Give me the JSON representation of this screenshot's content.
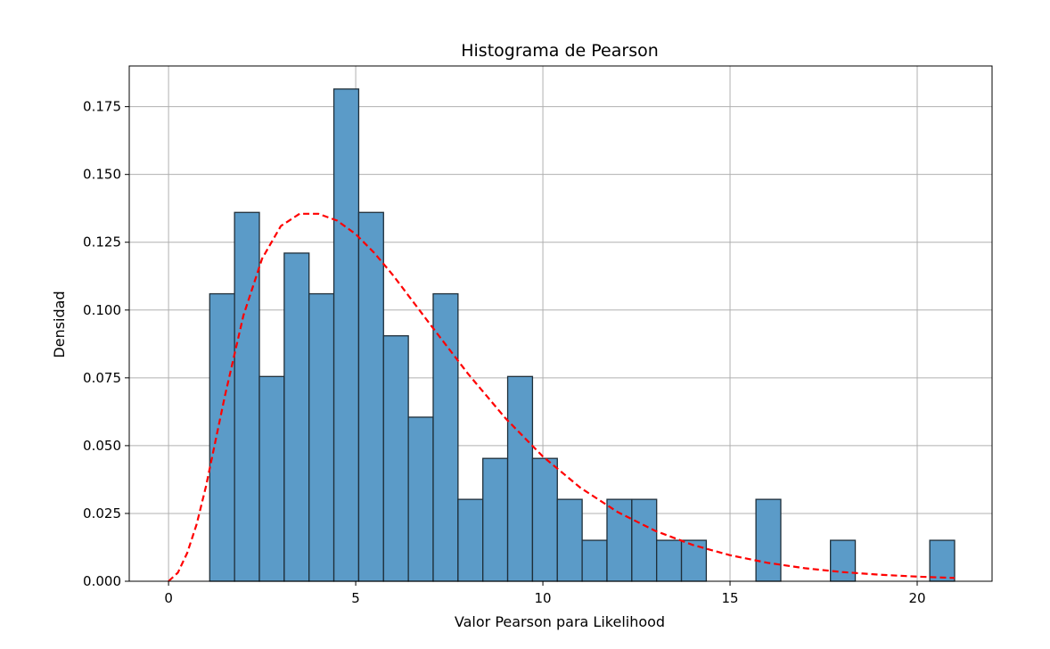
{
  "chart_data": {
    "type": "bar",
    "title": "Histograma de Pearson",
    "xlabel": "Valor Pearson para Likelihood",
    "ylabel": "Densidad",
    "xlim": [
      -1.05,
      22.0
    ],
    "ylim": [
      0,
      0.19
    ],
    "xticks": [
      0,
      5,
      10,
      15,
      20
    ],
    "xtick_labels": [
      "0",
      "5",
      "10",
      "15",
      "20"
    ],
    "yticks": [
      0,
      0.025,
      0.05,
      0.075,
      0.1,
      0.125,
      0.15,
      0.175
    ],
    "ytick_labels": [
      "0.000",
      "0.025",
      "0.050",
      "0.075",
      "0.100",
      "0.125",
      "0.150",
      "0.175"
    ],
    "grid": true,
    "histogram": {
      "bin_start": 1.1,
      "bin_width": 0.6633,
      "color": "#5b9bc8",
      "edgecolor": "#1f2f3a",
      "densities": [
        0.106,
        0.136,
        0.0755,
        0.121,
        0.106,
        0.1815,
        0.136,
        0.0905,
        0.0605,
        0.106,
        0.0302,
        0.0453,
        0.0755,
        0.0453,
        0.0302,
        0.0151,
        0.0302,
        0.0302,
        0.0151,
        0.0151,
        0,
        0,
        0.0302,
        0,
        0,
        0.0151,
        0,
        0,
        0,
        0.0151
      ]
    },
    "fit_curve": {
      "style": "dashed",
      "color": "#ff0000",
      "x": [
        0,
        0.25,
        0.5,
        0.75,
        1.0,
        1.5,
        2.0,
        2.5,
        3.0,
        3.5,
        4.0,
        4.5,
        5.0,
        5.5,
        6.0,
        7.0,
        8.0,
        9.0,
        10.0,
        11.0,
        12.0,
        13.0,
        14.0,
        15.0,
        16.0,
        17.0,
        18.0,
        19.0,
        20.0,
        21.0
      ],
      "y": [
        0.0,
        0.0032,
        0.0105,
        0.021,
        0.035,
        0.068,
        0.098,
        0.119,
        0.131,
        0.1355,
        0.1355,
        0.133,
        0.128,
        0.121,
        0.1128,
        0.0945,
        0.0765,
        0.0601,
        0.046,
        0.0345,
        0.0255,
        0.0186,
        0.0134,
        0.0096,
        0.0068,
        0.0048,
        0.0034,
        0.0024,
        0.0017,
        0.0012
      ]
    }
  }
}
